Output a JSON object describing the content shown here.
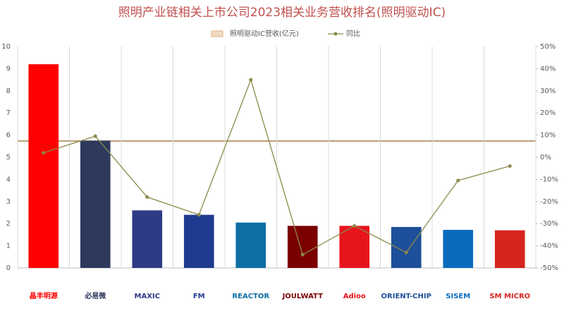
{
  "chart_data": {
    "type": "bar_line",
    "title": "照明产业链相关上市公司2023相关业务营收排名(照明驱动IC)",
    "categories": [
      "晶丰明源",
      "必易微",
      "MAXIC",
      "FM",
      "REACTOR",
      "JOULWATT",
      "Adioo",
      "ORIENT-CHIP",
      "SISEM",
      "SM MICRO"
    ],
    "series": [
      {
        "name": "照明驱动IC营收(亿元)",
        "type": "bar",
        "color": "#f0d9c0",
        "colors": [
          "#ff0000",
          "#2e3a5c",
          "#2e3a86",
          "#1f3b8f",
          "#0d6fa3",
          "#7b0000",
          "#e8141c",
          "#1d4f9a",
          "#0a6bbd",
          "#d8241f"
        ],
        "values": [
          9.2,
          5.75,
          2.6,
          2.4,
          2.05,
          1.9,
          1.9,
          1.85,
          1.72,
          1.7
        ]
      },
      {
        "name": "同比",
        "type": "line",
        "axis": "y2",
        "color": "#8b8a4a",
        "values": [
          2,
          9.5,
          -18,
          -26,
          35,
          -44,
          -31,
          -43,
          -10.5,
          -4
        ]
      }
    ],
    "ylim": [
      0,
      10
    ],
    "yticks": [
      0,
      1,
      2,
      3,
      4,
      5,
      6,
      7,
      8,
      9,
      10
    ],
    "y2lim": [
      -50,
      50
    ],
    "y2ticks": [
      {
        "value": -50,
        "label": "-50%"
      },
      {
        "value": -40,
        "label": "-40%"
      },
      {
        "value": -30,
        "label": "-30%"
      },
      {
        "value": -20,
        "label": "-20%"
      },
      {
        "value": -10,
        "label": "-10%"
      },
      {
        "value": 0,
        "label": "0%"
      },
      {
        "value": 10,
        "label": "10%"
      },
      {
        "value": 20,
        "label": "20%"
      },
      {
        "value": 30,
        "label": "30%"
      },
      {
        "value": 40,
        "label": "40%"
      },
      {
        "value": 50,
        "label": "50%"
      }
    ],
    "grid": true
  }
}
